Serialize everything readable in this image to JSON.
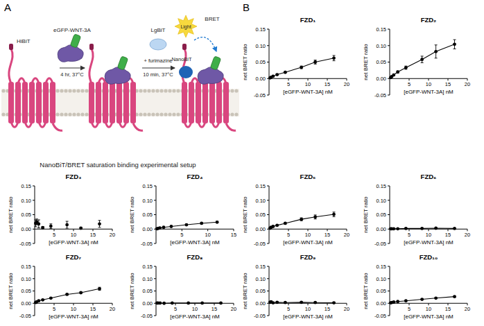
{
  "panel_labels": [
    "A",
    "B"
  ],
  "diagram": {
    "labels": {
      "hibit": "HiBiT",
      "ligand": "eGFP-WNT-3A",
      "step1": "4 hr, 37°C",
      "lgbit": "LgBiT",
      "step2": "10 min, 37°C",
      "furimazine": "+ furimazine",
      "light": "Light",
      "bret": "BRET",
      "nanobit": "NanoBiT"
    },
    "caption": "NanoBiT/BRET saturation binding experimental setup"
  },
  "chart_data": [
    {
      "type": "line",
      "title": "FZD₁",
      "x_label": "[eGFP-WNT-3A] nM",
      "y_label": "net BRET ratio",
      "xlim": [
        0,
        20
      ],
      "xticks": [
        5,
        10,
        15,
        20
      ],
      "ylim": [
        -0.05,
        0.15
      ],
      "yticks": [
        {
          "value": -0.05,
          "label": "-0.05"
        },
        {
          "value": 0,
          "label": "0.00"
        },
        {
          "value": 0.05,
          "label": "0.05"
        },
        {
          "value": 0.1,
          "label": "0.10"
        },
        {
          "value": 0.15,
          "label": "0.15"
        }
      ],
      "x": [
        0.26,
        0.52,
        1.04,
        2.08,
        4.17,
        8.33,
        11.9,
        16.7
      ],
      "series": [
        {
          "color": "#000000",
          "marker": "circle",
          "line_style": "solid",
          "values": [
            0.002,
            0.004,
            0.007,
            0.012,
            0.019,
            0.034,
            0.05,
            0.062
          ],
          "errors": [
            0.001,
            0.001,
            0.001,
            0.002,
            0.002,
            0.004,
            0.006,
            0.008
          ]
        }
      ]
    },
    {
      "type": "line",
      "title": "FZD₂",
      "x_label": "[eGFP-WNT-3A] nM",
      "y_label": "net BRET ratio",
      "xlim": [
        0,
        20
      ],
      "xticks": [
        5,
        10,
        15,
        20
      ],
      "ylim": [
        -0.05,
        0.15
      ],
      "yticks": [
        {
          "value": -0.05,
          "label": "-0.05"
        },
        {
          "value": 0,
          "label": "0.00"
        },
        {
          "value": 0.05,
          "label": "0.05"
        },
        {
          "value": 0.1,
          "label": "0.10"
        },
        {
          "value": 0.15,
          "label": "0.15"
        }
      ],
      "x": [
        0.26,
        0.52,
        1.04,
        2.08,
        4.17,
        8.33,
        11.9,
        16.7
      ],
      "series": [
        {
          "color": "#000000",
          "marker": "circle",
          "line_style": "solid",
          "values": [
            0.003,
            0.006,
            0.011,
            0.02,
            0.033,
            0.058,
            0.082,
            0.104
          ],
          "errors": [
            0.001,
            0.001,
            0.002,
            0.003,
            0.005,
            0.01,
            0.02,
            0.014
          ]
        }
      ]
    },
    {
      "type": "line",
      "title": "FZD₃",
      "x_label": "[eGFP-WNT-3A] nM",
      "y_label": "net BRET ratio",
      "xlim": [
        0,
        20
      ],
      "xticks": [
        5,
        10,
        15,
        20
      ],
      "ylim": [
        -0.05,
        0.15
      ],
      "yticks": [
        {
          "value": -0.05,
          "label": "-0.05"
        },
        {
          "value": 0,
          "label": "0.00"
        },
        {
          "value": 0.05,
          "label": "0.05"
        },
        {
          "value": 0.1,
          "label": "0.10"
        },
        {
          "value": 0.15,
          "label": "0.15"
        }
      ],
      "x": [
        0.26,
        0.52,
        1.04,
        2.08,
        4.17,
        8.33,
        11.9,
        16.7
      ],
      "series": [
        {
          "color": "#000000",
          "marker": "circle",
          "line_style": "none",
          "values": [
            0.02,
            0.025,
            0.018,
            0.005,
            0.01,
            0.015,
            0.003,
            0.018
          ],
          "errors": [
            0.012,
            0.01,
            0.014,
            0.004,
            0.008,
            0.012,
            0.003,
            0.012
          ]
        }
      ]
    },
    {
      "type": "line",
      "title": "FZD₄",
      "x_label": "[eGFP-WNT-3A] nM",
      "y_label": "net BRET ratio",
      "xlim": [
        0,
        15
      ],
      "xticks": [
        5,
        10,
        15
      ],
      "ylim": [
        -0.05,
        0.15
      ],
      "yticks": [
        {
          "value": -0.05,
          "label": "-0.05"
        },
        {
          "value": 0,
          "label": "0.00"
        },
        {
          "value": 0.05,
          "label": "0.05"
        },
        {
          "value": 0.1,
          "label": "0.10"
        },
        {
          "value": 0.15,
          "label": "0.15"
        }
      ],
      "x": [
        0.18,
        0.37,
        0.73,
        1.47,
        2.94,
        5.88,
        8.8,
        11.8
      ],
      "series": [
        {
          "color": "#000000",
          "marker": "circle",
          "line_style": "solid",
          "values": [
            0.001,
            0.002,
            0.004,
            0.006,
            0.009,
            0.015,
            0.02,
            0.024
          ],
          "errors": [
            0.001,
            0.001,
            0.001,
            0.001,
            0.001,
            0.002,
            0.002,
            0.003
          ]
        }
      ]
    },
    {
      "type": "line",
      "title": "FZD₅",
      "x_label": "[eGFP-WNT-3A] nM",
      "y_label": "net BRET ratio",
      "xlim": [
        0,
        20
      ],
      "xticks": [
        5,
        10,
        15,
        20
      ],
      "ylim": [
        -0.05,
        0.15
      ],
      "yticks": [
        {
          "value": -0.05,
          "label": "-0.05"
        },
        {
          "value": 0,
          "label": "0.00"
        },
        {
          "value": 0.05,
          "label": "0.05"
        },
        {
          "value": 0.1,
          "label": "0.10"
        },
        {
          "value": 0.15,
          "label": "0.15"
        }
      ],
      "x": [
        0.26,
        0.52,
        1.04,
        2.08,
        4.17,
        8.33,
        11.9,
        16.7
      ],
      "series": [
        {
          "color": "#000000",
          "marker": "circle",
          "line_style": "solid",
          "values": [
            0.003,
            0.006,
            0.009,
            0.013,
            0.02,
            0.034,
            0.042,
            0.051
          ],
          "errors": [
            0.001,
            0.001,
            0.002,
            0.002,
            0.003,
            0.005,
            0.007,
            0.008
          ]
        }
      ]
    },
    {
      "type": "line",
      "title": "FZD₆",
      "x_label": "[eGFP-WNT-3A] nM",
      "y_label": "net BRET ratio",
      "xlim": [
        0,
        20
      ],
      "xticks": [
        5,
        10,
        15,
        20
      ],
      "ylim": [
        -0.05,
        0.15
      ],
      "yticks": [
        {
          "value": -0.05,
          "label": "-0.05"
        },
        {
          "value": 0,
          "label": "0.00"
        },
        {
          "value": 0.05,
          "label": "0.05"
        },
        {
          "value": 0.1,
          "label": "0.10"
        },
        {
          "value": 0.15,
          "label": "0.15"
        }
      ],
      "x": [
        0.26,
        0.52,
        1.04,
        2.08,
        4.17,
        8.33,
        11.9,
        16.7
      ],
      "series": [
        {
          "color": "#000000",
          "marker": "circle",
          "line_style": "solid",
          "values": [
            0.001,
            0.001,
            0.001,
            0.001,
            0.002,
            0.002,
            0.003,
            0.002
          ],
          "errors": [
            0.001,
            0.001,
            0.001,
            0.001,
            0.001,
            0.001,
            0.001,
            0.001
          ]
        }
      ]
    },
    {
      "type": "line",
      "title": "FZD₇",
      "x_label": "[eGFP-WNT-3A] nM",
      "y_label": "net BRET ratio",
      "xlim": [
        0,
        20
      ],
      "xticks": [
        5,
        10,
        15,
        20
      ],
      "ylim": [
        -0.05,
        0.15
      ],
      "yticks": [
        {
          "value": -0.05,
          "label": "-0.05"
        },
        {
          "value": 0,
          "label": "0.00"
        },
        {
          "value": 0.05,
          "label": "0.05"
        },
        {
          "value": 0.1,
          "label": "0.10"
        },
        {
          "value": 0.15,
          "label": "0.15"
        }
      ],
      "x": [
        0.26,
        0.52,
        1.04,
        2.08,
        4.17,
        8.33,
        11.9,
        16.7
      ],
      "series": [
        {
          "color": "#000000",
          "marker": "circle",
          "line_style": "solid",
          "values": [
            0.003,
            0.006,
            0.01,
            0.014,
            0.021,
            0.036,
            0.043,
            0.059
          ],
          "errors": [
            0.001,
            0.001,
            0.001,
            0.002,
            0.002,
            0.003,
            0.003,
            0.006
          ]
        }
      ]
    },
    {
      "type": "line",
      "title": "FZD₈",
      "x_label": "[eGFP-WNT-3A] nM",
      "y_label": "net BRET ratio",
      "xlim": [
        0,
        20
      ],
      "xticks": [
        5,
        10,
        15,
        20
      ],
      "ylim": [
        -0.05,
        0.15
      ],
      "yticks": [
        {
          "value": -0.05,
          "label": "-0.05"
        },
        {
          "value": 0,
          "label": "0.00"
        },
        {
          "value": 0.05,
          "label": "0.05"
        },
        {
          "value": 0.1,
          "label": "0.10"
        },
        {
          "value": 0.15,
          "label": "0.15"
        }
      ],
      "x": [
        0.26,
        0.52,
        1.04,
        2.08,
        4.17,
        8.33,
        11.9,
        16.7
      ],
      "series": [
        {
          "color": "#000000",
          "marker": "circle",
          "line_style": "solid",
          "values": [
            0.001,
            0.001,
            0.001,
            0,
            0.001,
            0.001,
            0.001,
            0.001
          ],
          "errors": [
            0.001,
            0.001,
            0.001,
            0.001,
            0.001,
            0.001,
            0.001,
            0.001
          ]
        }
      ]
    },
    {
      "type": "line",
      "title": "FZD₉",
      "x_label": "[eGFP-WNT-3A] nM",
      "y_label": "net BRET ratio",
      "xlim": [
        0,
        20
      ],
      "xticks": [
        5,
        10,
        15,
        20
      ],
      "ylim": [
        -0.05,
        0.15
      ],
      "yticks": [
        {
          "value": -0.05,
          "label": "-0.05"
        },
        {
          "value": 0,
          "label": "0.00"
        },
        {
          "value": 0.05,
          "label": "0.05"
        },
        {
          "value": 0.1,
          "label": "0.10"
        },
        {
          "value": 0.15,
          "label": "0.15"
        }
      ],
      "x": [
        0.26,
        0.52,
        1.04,
        2.08,
        4.17,
        8.33,
        11.9,
        16.7
      ],
      "series": [
        {
          "color": "#000000",
          "marker": "circle",
          "line_style": "solid",
          "values": [
            0.004,
            0.006,
            0.002,
            0.004,
            0.003,
            0.004,
            0.003,
            0.002
          ],
          "errors": [
            0.003,
            0.004,
            0.002,
            0.002,
            0.002,
            0.002,
            0.002,
            0.002
          ]
        }
      ]
    },
    {
      "type": "line",
      "title": "FZD₁₀",
      "x_label": "[eGFP-WNT-3A] nM",
      "y_label": "net BRET ratio",
      "xlim": [
        0,
        20
      ],
      "xticks": [
        5,
        10,
        15,
        20
      ],
      "ylim": [
        -0.05,
        0.15
      ],
      "yticks": [
        {
          "value": -0.05,
          "label": "-0.05"
        },
        {
          "value": 0,
          "label": "0.00"
        },
        {
          "value": 0.05,
          "label": "0.05"
        },
        {
          "value": 0.1,
          "label": "0.10"
        },
        {
          "value": 0.15,
          "label": "0.15"
        }
      ],
      "x": [
        0.26,
        0.52,
        1.04,
        2.08,
        4.17,
        8.33,
        11.9,
        16.7
      ],
      "series": [
        {
          "color": "#000000",
          "marker": "circle",
          "line_style": "solid",
          "values": [
            0.002,
            0.003,
            0.005,
            0.007,
            0.01,
            0.016,
            0.021,
            0.027
          ],
          "errors": [
            0.001,
            0.001,
            0.001,
            0.001,
            0.001,
            0.002,
            0.002,
            0.002
          ]
        }
      ]
    }
  ]
}
